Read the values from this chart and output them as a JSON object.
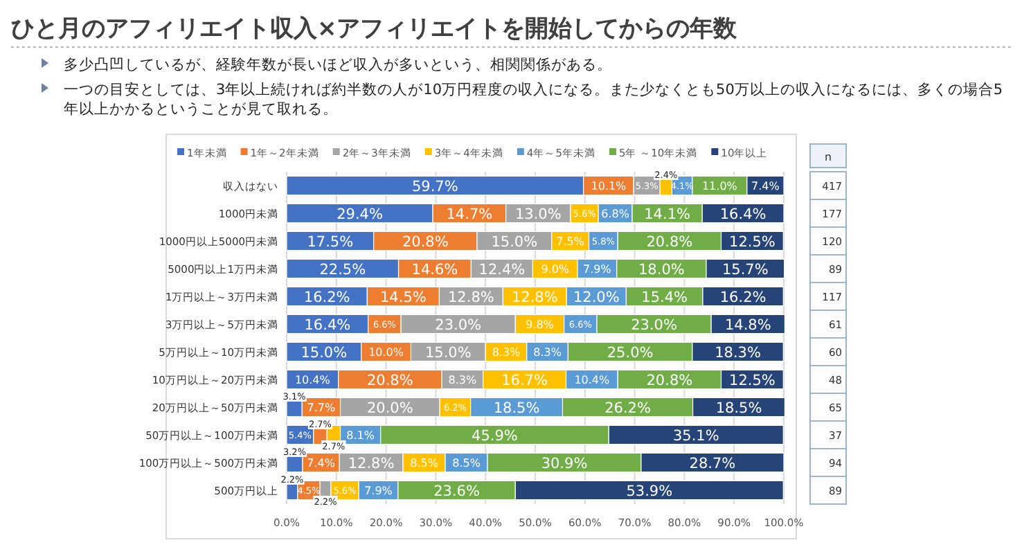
{
  "chart_data": [
    {
      "type": "bar",
      "orientation": "horizontal",
      "stacked": true,
      "title": "ひと月のアフィリエイト収入×アフィリエイトを開始してからの年数",
      "annotations": [
        "多少凸凹しているが、経験年数が長いほど収入が多いという、相関関係がある。",
        "一つの目安としては、3年以上続ければ約半数の人が10万円程度の収入になる。また少なくとも50万以上の収入になるには、多くの場合5年以上かかるということが見て取れる。"
      ],
      "categories": [
        "収入はない",
        "1000円未満",
        "1000円以上5000円未満",
        "5000円以上1万円未満",
        "1万円以上～3万円未満",
        "3万円以上～5万円未満",
        "5万円以上～10万円未満",
        "10万円以上～20万円未満",
        "20万円以上～50万円未満",
        "50万円以上～100万円未満",
        "100万円以上～500万円未満",
        "500万円以上"
      ],
      "series": [
        {
          "name": "1年未満",
          "color": "#4472c4",
          "values": [
            59.7,
            29.4,
            17.5,
            22.5,
            16.2,
            16.4,
            15.0,
            10.4,
            3.1,
            5.4,
            3.2,
            2.2
          ],
          "value_labels": [
            "59.7%",
            "29.4%",
            "17.5%",
            "22.5%",
            "16.2%",
            "16.4%",
            "15.0%",
            "10.4%",
            "3.1%",
            "5.4%",
            "3.2%",
            "2.2%"
          ]
        },
        {
          "name": "1年～2年未満",
          "color": "#ed7d31",
          "values": [
            10.1,
            14.7,
            20.8,
            14.6,
            14.5,
            6.6,
            10.0,
            20.8,
            7.7,
            2.7,
            7.4,
            4.5
          ],
          "value_labels": [
            "10.1%",
            "14.7%",
            "20.8%",
            "14.6%",
            "14.5%",
            "6.6%",
            "10.0%",
            "20.8%",
            "7.7%",
            "2.7%",
            "7.4%",
            "4.5%"
          ]
        },
        {
          "name": "2年～3年未満",
          "color": "#a5a5a5",
          "values": [
            5.3,
            13.0,
            15.0,
            12.4,
            12.8,
            23.0,
            15.0,
            8.3,
            20.0,
            null,
            12.8,
            2.2
          ],
          "value_labels": [
            "5.3%",
            "13.0%",
            "15.0%",
            "12.4%",
            "12.8%",
            "23.0%",
            "15.0%",
            "8.3%",
            "20.0%",
            null,
            "12.8%",
            "2.2%"
          ]
        },
        {
          "name": "3年～4年未満",
          "color": "#ffc000",
          "values": [
            2.4,
            5.6,
            7.5,
            9.0,
            12.8,
            9.8,
            8.3,
            16.7,
            6.2,
            2.7,
            8.5,
            5.6
          ],
          "value_labels": [
            "2.4%",
            "5.6%",
            "7.5%",
            "9.0%",
            "12.8%",
            "9.8%",
            "8.3%",
            "16.7%",
            "6.2%",
            "2.7%",
            "8.5%",
            "5.6%"
          ]
        },
        {
          "name": "4年～5年未満",
          "color": "#5b9bd5",
          "values": [
            4.1,
            6.8,
            5.8,
            7.9,
            12.0,
            6.6,
            8.3,
            10.4,
            18.5,
            8.1,
            8.5,
            7.9
          ],
          "value_labels": [
            "4.1%",
            "6.8%",
            "5.8%",
            "7.9%",
            "12.0%",
            "6.6%",
            "8.3%",
            "10.4%",
            "18.5%",
            "8.1%",
            "8.5%",
            "7.9%"
          ]
        },
        {
          "name": "5年 ～10年未満",
          "color": "#70ad47",
          "values": [
            11.0,
            14.1,
            20.8,
            18.0,
            15.4,
            23.0,
            25.0,
            20.8,
            26.2,
            45.9,
            30.9,
            23.6
          ],
          "value_labels": [
            "11.0%",
            "14.1%",
            "20.8%",
            "18.0%",
            "15.4%",
            "23.0%",
            "25.0%",
            "20.8%",
            "26.2%",
            "45.9%",
            "30.9%",
            "23.6%"
          ]
        },
        {
          "name": "10年以上",
          "color": "#264478",
          "values": [
            7.4,
            16.4,
            12.5,
            15.7,
            16.2,
            14.8,
            18.3,
            12.5,
            18.5,
            35.1,
            28.7,
            53.9
          ],
          "value_labels": [
            "7.4%",
            "16.4%",
            "12.5%",
            "15.7%",
            "16.2%",
            "14.8%",
            "18.3%",
            "12.5%",
            "18.5%",
            "35.1%",
            "28.7%",
            "53.9%"
          ]
        }
      ],
      "xlim": [
        0,
        100
      ],
      "xticks": [
        {
          "value": 0,
          "label": "0.0%"
        },
        {
          "value": 10,
          "label": "10.0%"
        },
        {
          "value": 20,
          "label": "20.0%"
        },
        {
          "value": 30,
          "label": "30.0%"
        },
        {
          "value": 40,
          "label": "40.0%"
        },
        {
          "value": 50,
          "label": "50.0%"
        },
        {
          "value": 60,
          "label": "60.0%"
        },
        {
          "value": 70,
          "label": "70.0%"
        },
        {
          "value": 80,
          "label": "80.0%"
        },
        {
          "value": 90,
          "label": "90.0%"
        },
        {
          "value": 100,
          "label": "100.0%"
        }
      ],
      "grid": "x",
      "legend": "top"
    },
    {
      "type": "other",
      "title": "n",
      "data_labels": true,
      "values": [
        417,
        177,
        120,
        89,
        117,
        61,
        60,
        48,
        65,
        37,
        94,
        89
      ]
    }
  ]
}
